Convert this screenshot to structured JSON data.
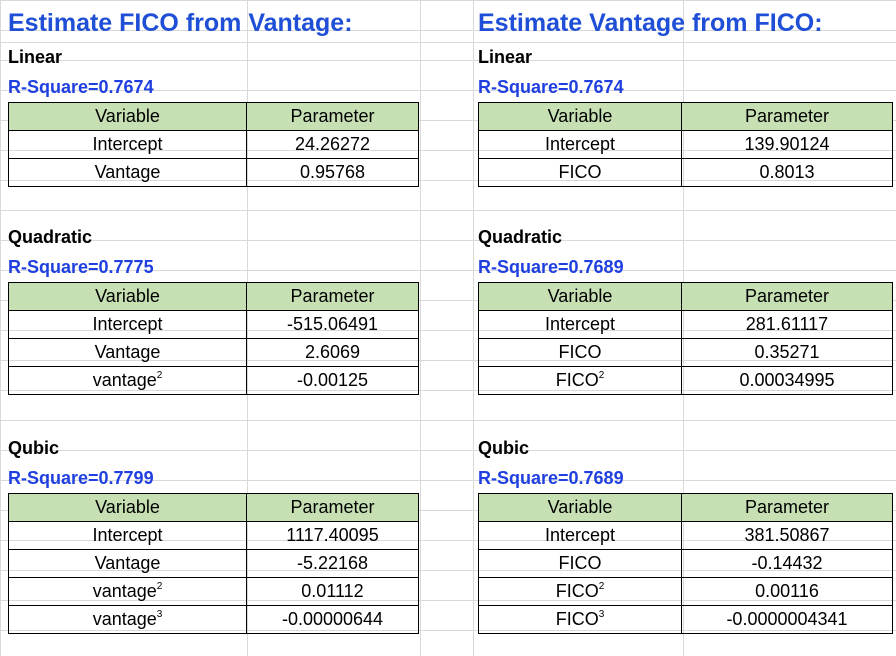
{
  "left": {
    "title": "Estimate FICO from Vantage:",
    "header": {
      "variable": "Variable",
      "parameter": "Parameter"
    },
    "models": [
      {
        "name": "Linear",
        "rsq": "R-Square=0.7674",
        "rows": [
          {
            "variable": "Intercept",
            "sup": "",
            "parameter": "24.26272"
          },
          {
            "variable": "Vantage",
            "sup": "",
            "parameter": "0.95768"
          }
        ]
      },
      {
        "name": "Quadratic",
        "rsq": "R-Square=0.7775",
        "rows": [
          {
            "variable": "Intercept",
            "sup": "",
            "parameter": "-515.06491"
          },
          {
            "variable": "Vantage",
            "sup": "",
            "parameter": "2.6069"
          },
          {
            "variable": "vantage",
            "sup": "2",
            "parameter": "-0.00125"
          }
        ]
      },
      {
        "name": "Qubic",
        "rsq": "R-Square=0.7799",
        "rows": [
          {
            "variable": "Intercept",
            "sup": "",
            "parameter": "1117.40095"
          },
          {
            "variable": "Vantage",
            "sup": "",
            "parameter": "-5.22168"
          },
          {
            "variable": "vantage",
            "sup": "2",
            "parameter": "0.01112"
          },
          {
            "variable": "vantage",
            "sup": "3",
            "parameter": "-0.00000644"
          }
        ]
      }
    ]
  },
  "right": {
    "title": "Estimate Vantage from FICO:",
    "header": {
      "variable": "Variable",
      "parameter": "Parameter"
    },
    "models": [
      {
        "name": "Linear",
        "rsq": "R-Square=0.7674",
        "rows": [
          {
            "variable": "Intercept",
            "sup": "",
            "parameter": "139.90124"
          },
          {
            "variable": "FICO",
            "sup": "",
            "parameter": "0.8013"
          }
        ]
      },
      {
        "name": "Quadratic",
        "rsq": "R-Square=0.7689",
        "rows": [
          {
            "variable": "Intercept",
            "sup": "",
            "parameter": "281.61117"
          },
          {
            "variable": "FICO",
            "sup": "",
            "parameter": "0.35271"
          },
          {
            "variable": "FICO",
            "sup": "2",
            "parameter": "0.00034995"
          }
        ]
      },
      {
        "name": "Qubic",
        "rsq": "R-Square=0.7689",
        "rows": [
          {
            "variable": "Intercept",
            "sup": "",
            "parameter": "381.50867"
          },
          {
            "variable": "FICO",
            "sup": "",
            "parameter": "-0.14432"
          },
          {
            "variable": "FICO",
            "sup": "2",
            "parameter": "0.00116"
          },
          {
            "variable": "FICO",
            "sup": "3",
            "parameter": "-0.0000004341"
          }
        ]
      }
    ]
  }
}
